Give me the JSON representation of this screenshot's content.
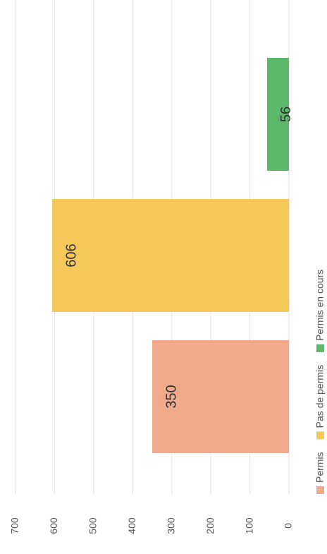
{
  "chart_data": {
    "type": "bar",
    "categories": [
      "Permis",
      "Pas de permis",
      "Permis en cours"
    ],
    "series": [
      {
        "name": "Permis",
        "color": "#f0a98a",
        "values": [
          350,
          null,
          null
        ]
      },
      {
        "name": "Pas de permis",
        "color": "#f5c85a",
        "values": [
          null,
          606,
          null
        ]
      },
      {
        "name": "Permis en cours",
        "color": "#5cb86a",
        "values": [
          null,
          null,
          56
        ]
      }
    ],
    "ylim": [
      0,
      700
    ],
    "yticks": [
      0,
      100,
      200,
      300,
      400,
      500,
      600,
      700
    ],
    "grid": true,
    "legend": "bottom"
  }
}
